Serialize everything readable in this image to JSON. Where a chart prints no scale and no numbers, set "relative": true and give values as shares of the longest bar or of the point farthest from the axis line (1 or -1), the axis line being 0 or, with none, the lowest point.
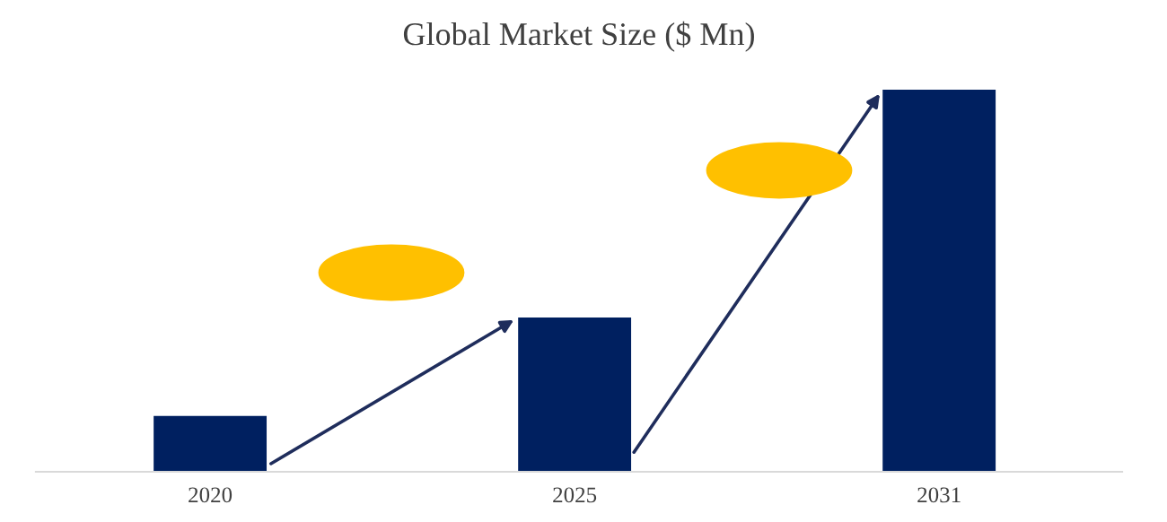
{
  "chart_data": {
    "type": "bar",
    "title": "Global Market Size ($ Mn)",
    "categories": [
      "2020",
      "2025",
      "2031"
    ],
    "values": [
      0.146,
      0.404,
      1
    ],
    "color": "#002060",
    "relative": true
  }
}
